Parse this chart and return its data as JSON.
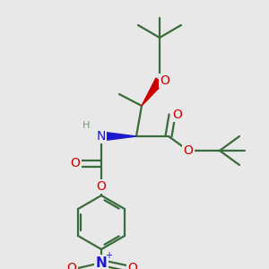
{
  "bg_color": "#e8e8e8",
  "bond_color": "#3a6b3a",
  "bond_width": 1.6,
  "atom_colors": {
    "O": "#cc0000",
    "N": "#1a1acc",
    "H": "#7a9a7a",
    "C": "#3a6b3a",
    "default": "#3a6b3a"
  },
  "font_size_atom": 10,
  "font_size_small": 8,
  "font_size_charge": 7
}
